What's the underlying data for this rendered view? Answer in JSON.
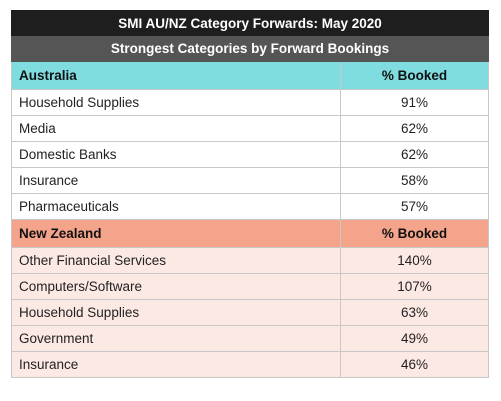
{
  "title": "SMI AU/NZ Category Forwards: May 2020",
  "subtitle": "Strongest Categories by Forward Bookings",
  "sections": [
    {
      "name": "Australia",
      "column": "% Booked",
      "rows": [
        {
          "category": "Household Supplies",
          "value": "91%"
        },
        {
          "category": "Media",
          "value": "62%"
        },
        {
          "category": "Domestic Banks",
          "value": "62%"
        },
        {
          "category": "Insurance",
          "value": "58%"
        },
        {
          "category": "Pharmaceuticals",
          "value": "57%"
        }
      ]
    },
    {
      "name": "New Zealand",
      "column": "% Booked",
      "rows": [
        {
          "category": "Other Financial Services",
          "value": "140%"
        },
        {
          "category": "Computers/Software",
          "value": "107%"
        },
        {
          "category": "Household Supplies",
          "value": "63%"
        },
        {
          "category": "Government",
          "value": "49%"
        },
        {
          "category": "Insurance",
          "value": "46%"
        }
      ]
    }
  ],
  "colors": {
    "title_bg": "#1e1e1e",
    "subtitle_bg": "#555555",
    "australia_header": "#7fdde0",
    "new_zealand_header": "#f4a48a",
    "new_zealand_rows": "#fde9e3"
  }
}
